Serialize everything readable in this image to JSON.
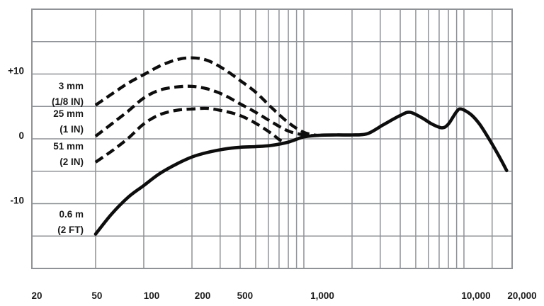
{
  "chart_data": {
    "type": "line",
    "title": "",
    "xlabel": "",
    "ylabel": "",
    "x_scale": "log",
    "xlim": [
      20,
      20000
    ],
    "ylim_db": [
      -20,
      20
    ],
    "grid": "on",
    "legend_position": "inline-left-labels",
    "grid_frequencies_hz": [
      20,
      50,
      100,
      200,
      300,
      400,
      500,
      600,
      700,
      800,
      900,
      1000,
      2000,
      3000,
      4000,
      5000,
      6000,
      7000,
      8000,
      9000,
      10000,
      15000,
      20000
    ],
    "grid_db_lines": [
      -20,
      -15,
      -10,
      -5,
      0,
      5,
      10,
      15,
      20
    ],
    "y_axis": {
      "labels": [
        {
          "text": "+10",
          "db": 10
        },
        {
          "text": "0",
          "db": 0
        },
        {
          "text": "-10",
          "db": -10
        }
      ]
    },
    "x_axis": {
      "ticks": [
        {
          "text": "20",
          "f": 20
        },
        {
          "text": "50",
          "f": 50
        },
        {
          "text": "100",
          "f": 100
        },
        {
          "text": "200",
          "f": 200
        },
        {
          "text": "500",
          "f": 500
        },
        {
          "text": "1,000",
          "f": 1000
        },
        {
          "text": "10,000",
          "f": 10000
        },
        {
          "text": "20,000",
          "f": 20000
        }
      ]
    },
    "series": [
      {
        "name": "3 mm (1/8 IN)",
        "label_line1": "3 mm",
        "label_line2": "(1/8 IN)",
        "style": "dashed",
        "points_hz_db": [
          [
            50,
            5.2
          ],
          [
            63,
            6.9
          ],
          [
            80,
            8.6
          ],
          [
            100,
            9.9
          ],
          [
            125,
            11.2
          ],
          [
            160,
            12.2
          ],
          [
            200,
            12.5
          ],
          [
            250,
            12.1
          ],
          [
            315,
            10.8
          ],
          [
            400,
            9.0
          ],
          [
            500,
            7.2
          ],
          [
            630,
            4.8
          ],
          [
            800,
            2.5
          ],
          [
            1000,
            1.0
          ],
          [
            1200,
            0.55
          ]
        ]
      },
      {
        "name": "25 mm (1 IN)",
        "label_line1": "25 mm",
        "label_line2": "(1 IN)",
        "style": "dashed",
        "points_hz_db": [
          [
            50,
            0.4
          ],
          [
            63,
            2.3
          ],
          [
            80,
            4.3
          ],
          [
            100,
            6.3
          ],
          [
            125,
            7.5
          ],
          [
            160,
            8.0
          ],
          [
            200,
            8.1
          ],
          [
            250,
            7.7
          ],
          [
            315,
            6.8
          ],
          [
            400,
            5.4
          ],
          [
            500,
            4.1
          ],
          [
            630,
            2.6
          ],
          [
            800,
            1.2
          ],
          [
            1000,
            0.6
          ],
          [
            1150,
            0.5
          ]
        ]
      },
      {
        "name": "51 mm (2 IN)",
        "label_line1": "51 mm",
        "label_line2": "(2 IN)",
        "style": "dashed",
        "points_hz_db": [
          [
            50,
            -3.6
          ],
          [
            63,
            -1.9
          ],
          [
            80,
            0.1
          ],
          [
            100,
            2.3
          ],
          [
            125,
            3.7
          ],
          [
            160,
            4.4
          ],
          [
            200,
            4.6
          ],
          [
            250,
            4.7
          ],
          [
            315,
            4.3
          ],
          [
            400,
            3.6
          ],
          [
            500,
            2.4
          ],
          [
            630,
            0.8
          ],
          [
            700,
            -0.1
          ],
          [
            770,
            -0.6
          ]
        ]
      },
      {
        "name": "0.6 m (2 FT)",
        "label_line1": "0.6 m",
        "label_line2": "(2 FT)",
        "style": "solid",
        "points_hz_db": [
          [
            50,
            -14.7
          ],
          [
            63,
            -11.6
          ],
          [
            80,
            -9.0
          ],
          [
            100,
            -7.2
          ],
          [
            125,
            -5.4
          ],
          [
            160,
            -3.9
          ],
          [
            200,
            -2.8
          ],
          [
            250,
            -2.1
          ],
          [
            315,
            -1.6
          ],
          [
            400,
            -1.3
          ],
          [
            500,
            -1.2
          ],
          [
            630,
            -1.0
          ],
          [
            800,
            -0.5
          ],
          [
            1000,
            0.3
          ],
          [
            1250,
            0.55
          ],
          [
            1600,
            0.6
          ],
          [
            2000,
            0.6
          ],
          [
            2500,
            0.8
          ],
          [
            3150,
            2.2
          ],
          [
            4000,
            3.6
          ],
          [
            4600,
            4.1
          ],
          [
            5500,
            3.2
          ],
          [
            6300,
            2.3
          ],
          [
            7300,
            1.7
          ],
          [
            8000,
            2.3
          ],
          [
            9000,
            4.2
          ],
          [
            9600,
            4.6
          ],
          [
            11000,
            3.8
          ],
          [
            12500,
            2.3
          ],
          [
            14500,
            -0.2
          ],
          [
            16500,
            -2.6
          ],
          [
            18500,
            -4.9
          ]
        ]
      }
    ]
  },
  "colors": {
    "background": "#ffffff",
    "grid": "#8f9296",
    "curve": "#0d0d0d",
    "text": "#1b1b1b"
  }
}
